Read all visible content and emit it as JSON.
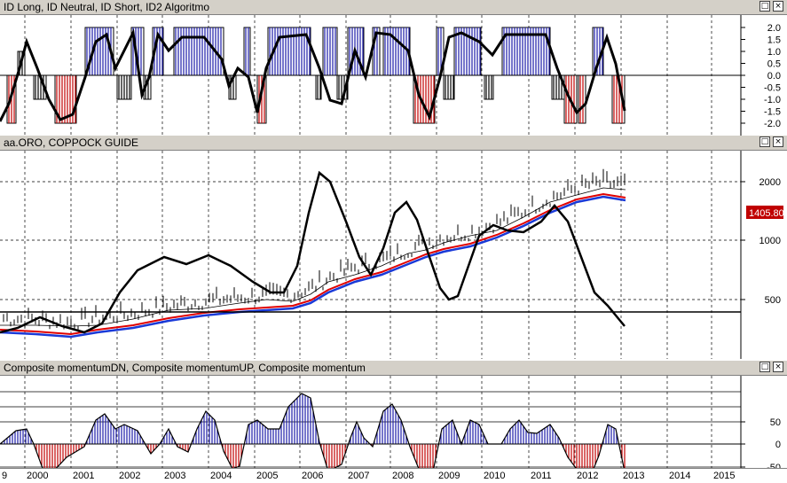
{
  "panels": {
    "top": {
      "title": "ID Long, ID Neutral, ID Short, ID2 Algoritmo",
      "y_ticks": [
        "2.0",
        "1.5",
        "1.0",
        "0.5",
        "0.0",
        "-0.5",
        "-1.0",
        "-1.5",
        "-2.0"
      ]
    },
    "middle": {
      "title": "aa.ORO, COPPOCK GUIDE",
      "y_ticks": [
        "2000",
        "1000",
        "500"
      ],
      "last_price": "1405.80"
    },
    "bottom": {
      "title": "Composite momentumDN, Composite momentumUP, Composite momentum",
      "y_ticks": [
        "50",
        "0",
        "-50"
      ]
    }
  },
  "window_buttons": {
    "restore": "□",
    "close": "×"
  },
  "x_axis": {
    "labels": [
      "9",
      "2000",
      "2001",
      "2002",
      "2003",
      "2004",
      "2005",
      "2006",
      "2007",
      "2008",
      "2009",
      "2010",
      "2011",
      "2012",
      "2013",
      "2014",
      "2015"
    ]
  },
  "colors": {
    "up_bars": "#1a1aa8",
    "down_bars": "#c00000",
    "neutral_bars": "#000000",
    "ma_red": "#e00000",
    "ma_blue": "#1a3ad8",
    "price_tag_bg": "#c00000",
    "title_bg": "#d4d0c8"
  }
}
